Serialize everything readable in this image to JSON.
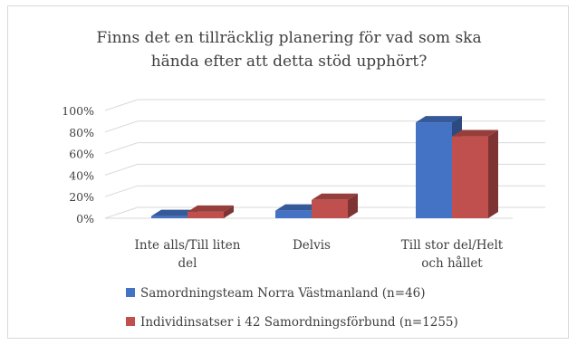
{
  "chart_data": {
    "type": "bar",
    "title_lines": [
      "Finns det en tillräcklig planering för vad som ska",
      "hända efter att detta stöd upphört?"
    ],
    "categories": [
      [
        "Inte alls/Till liten",
        "del"
      ],
      [
        "Delvis"
      ],
      [
        "Till stor del/Helt",
        "och hållet"
      ]
    ],
    "series": [
      {
        "name": "Samordningsteam Norra Västmanland (n=46)",
        "values": [
          2,
          7,
          89
        ],
        "color": "#4472c4"
      },
      {
        "name": "Individinsatser i 42 Samordningsförbund (n=1255)",
        "values": [
          6,
          17,
          76
        ],
        "color": "#c0504d"
      }
    ],
    "y_ticks": [
      "0%",
      "20%",
      "40%",
      "60%",
      "80%",
      "100%"
    ],
    "ylim": [
      0,
      100
    ],
    "grid": true,
    "three_d": true,
    "legend_position": "bottom"
  }
}
